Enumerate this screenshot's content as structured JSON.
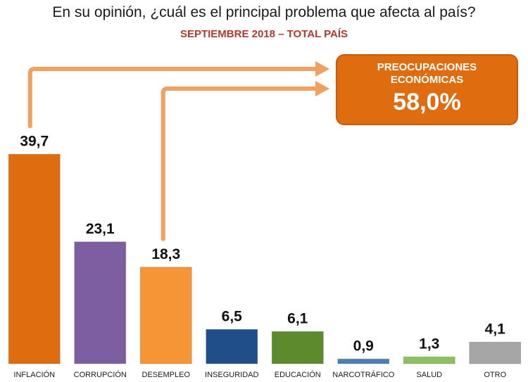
{
  "title": "En su opinión, ¿cuál es el principal problema que afecta al país?",
  "subtitle": "SEPTIEMBRE 2018 – TOTAL PAÍS",
  "callout": {
    "line1": "PREOCUPACIONES",
    "line2": "ECONÓMICAS",
    "value": "58,0%"
  },
  "colors": {
    "arrow": "#f0a060",
    "callout": "#e06c10"
  },
  "chart_data": {
    "type": "bar",
    "title": "En su opinión, ¿cuál es el principal problema que afecta al país?",
    "subtitle": "SEPTIEMBRE 2018 – TOTAL PAÍS",
    "categories": [
      "INFLACIÓN",
      "CORRUPCIÓN",
      "DESEMPLEO",
      "INSEGURIDAD",
      "EDUCACIÓN",
      "NARCOTRÁFICO",
      "SALUD",
      "OTRO"
    ],
    "values": [
      39.7,
      23.1,
      18.3,
      6.5,
      6.1,
      0.9,
      1.3,
      4.1
    ],
    "value_labels": [
      "39,7",
      "23,1",
      "18,3",
      "6,5",
      "6,1",
      "0,9",
      "1,3",
      "4,1"
    ],
    "colors": [
      "#e06c10",
      "#7d5ea1",
      "#f59536",
      "#1f4e89",
      "#5c8a2d",
      "#4a7fb6",
      "#8dc062",
      "#a6a6a6"
    ],
    "ylim": [
      0,
      40
    ],
    "grid": false,
    "legend": "none",
    "xlabel": "",
    "ylabel": ""
  }
}
